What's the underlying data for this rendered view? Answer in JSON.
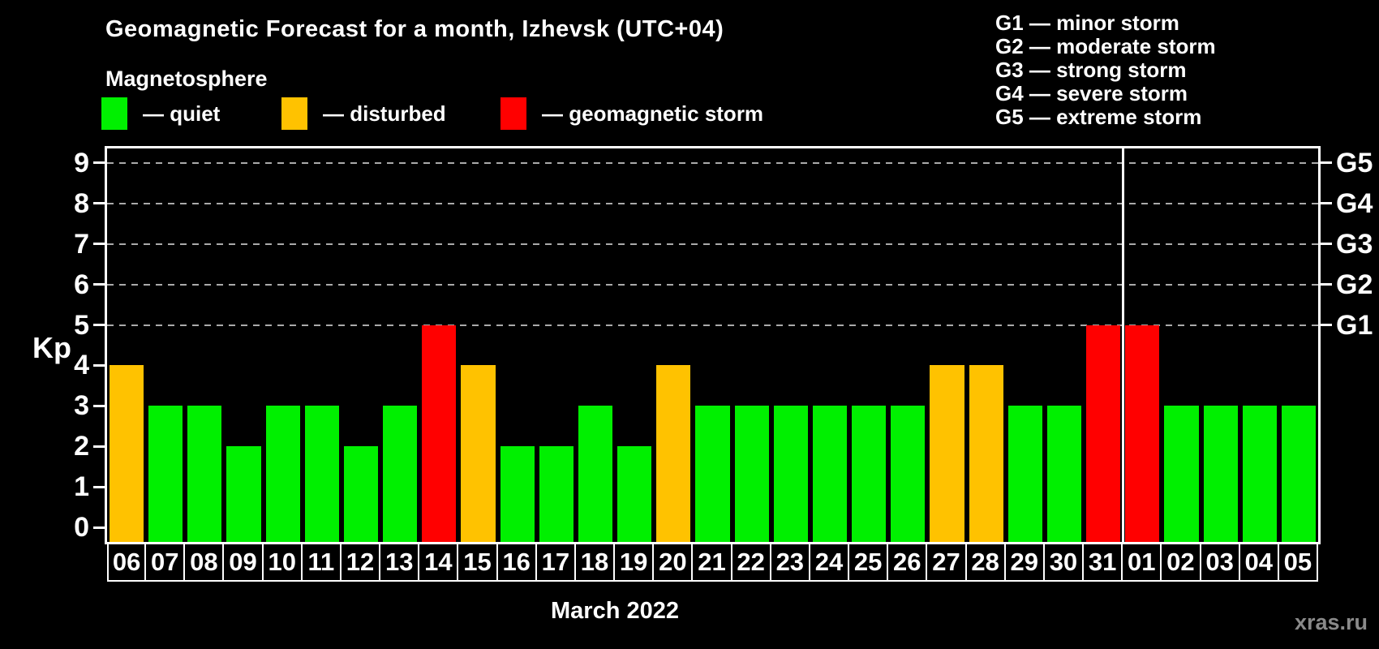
{
  "header": {
    "title": "Geomagnetic Forecast for a month, Izhevsk (UTC+04)",
    "subtitle": "Magnetosphere"
  },
  "legend": {
    "items": [
      {
        "status": "quiet",
        "label": "— quiet"
      },
      {
        "status": "disturbed",
        "label": "— disturbed"
      },
      {
        "status": "storm",
        "label": "— geomagnetic storm"
      }
    ]
  },
  "g_legend": {
    "items": [
      "G1 — minor storm",
      "G2 — moderate storm",
      "G3 — strong storm",
      "G4 — severe storm",
      "G5 — extreme storm"
    ]
  },
  "colors": {
    "quiet": "#00f000",
    "disturbed": "#ffc200",
    "storm": "#ff0000",
    "grid": "#aaaaaa",
    "axis": "#ffffff",
    "background": "#000000",
    "watermark": "#8a8a8a"
  },
  "chart_data": {
    "type": "bar",
    "title": "Geomagnetic Forecast for a month, Izhevsk (UTC+04)",
    "ylabel": "Kp",
    "xlabel": "March 2022",
    "ylim": [
      0,
      9
    ],
    "yticks": [
      0,
      1,
      2,
      3,
      4,
      5,
      6,
      7,
      8,
      9
    ],
    "gridlines_at": [
      5,
      6,
      7,
      8,
      9
    ],
    "grid": "dashed, horizontal, levels 5-9 only",
    "legend_position": "top",
    "right_axis": [
      {
        "kp": 5,
        "label": "G1"
      },
      {
        "kp": 6,
        "label": "G2"
      },
      {
        "kp": 7,
        "label": "G3"
      },
      {
        "kp": 8,
        "label": "G4"
      },
      {
        "kp": 9,
        "label": "G5"
      }
    ],
    "categories": [
      "06",
      "07",
      "08",
      "09",
      "10",
      "11",
      "12",
      "13",
      "14",
      "15",
      "16",
      "17",
      "18",
      "19",
      "20",
      "21",
      "22",
      "23",
      "24",
      "25",
      "26",
      "27",
      "28",
      "29",
      "30",
      "31",
      "01",
      "02",
      "03",
      "04",
      "05"
    ],
    "values": [
      4,
      3,
      3,
      2,
      3,
      3,
      2,
      3,
      5,
      4,
      2,
      2,
      3,
      2,
      4,
      3,
      3,
      3,
      3,
      3,
      3,
      4,
      4,
      3,
      3,
      5,
      5,
      3,
      3,
      3,
      3
    ],
    "statuses": [
      "disturbed",
      "quiet",
      "quiet",
      "quiet",
      "quiet",
      "quiet",
      "quiet",
      "quiet",
      "storm",
      "disturbed",
      "quiet",
      "quiet",
      "quiet",
      "quiet",
      "disturbed",
      "quiet",
      "quiet",
      "quiet",
      "quiet",
      "quiet",
      "quiet",
      "disturbed",
      "disturbed",
      "quiet",
      "quiet",
      "storm",
      "storm",
      "quiet",
      "quiet",
      "quiet",
      "quiet"
    ],
    "month_boundary_after": "31"
  },
  "footer": {
    "xaxis_title": "March 2022",
    "watermark": "xras.ru"
  }
}
